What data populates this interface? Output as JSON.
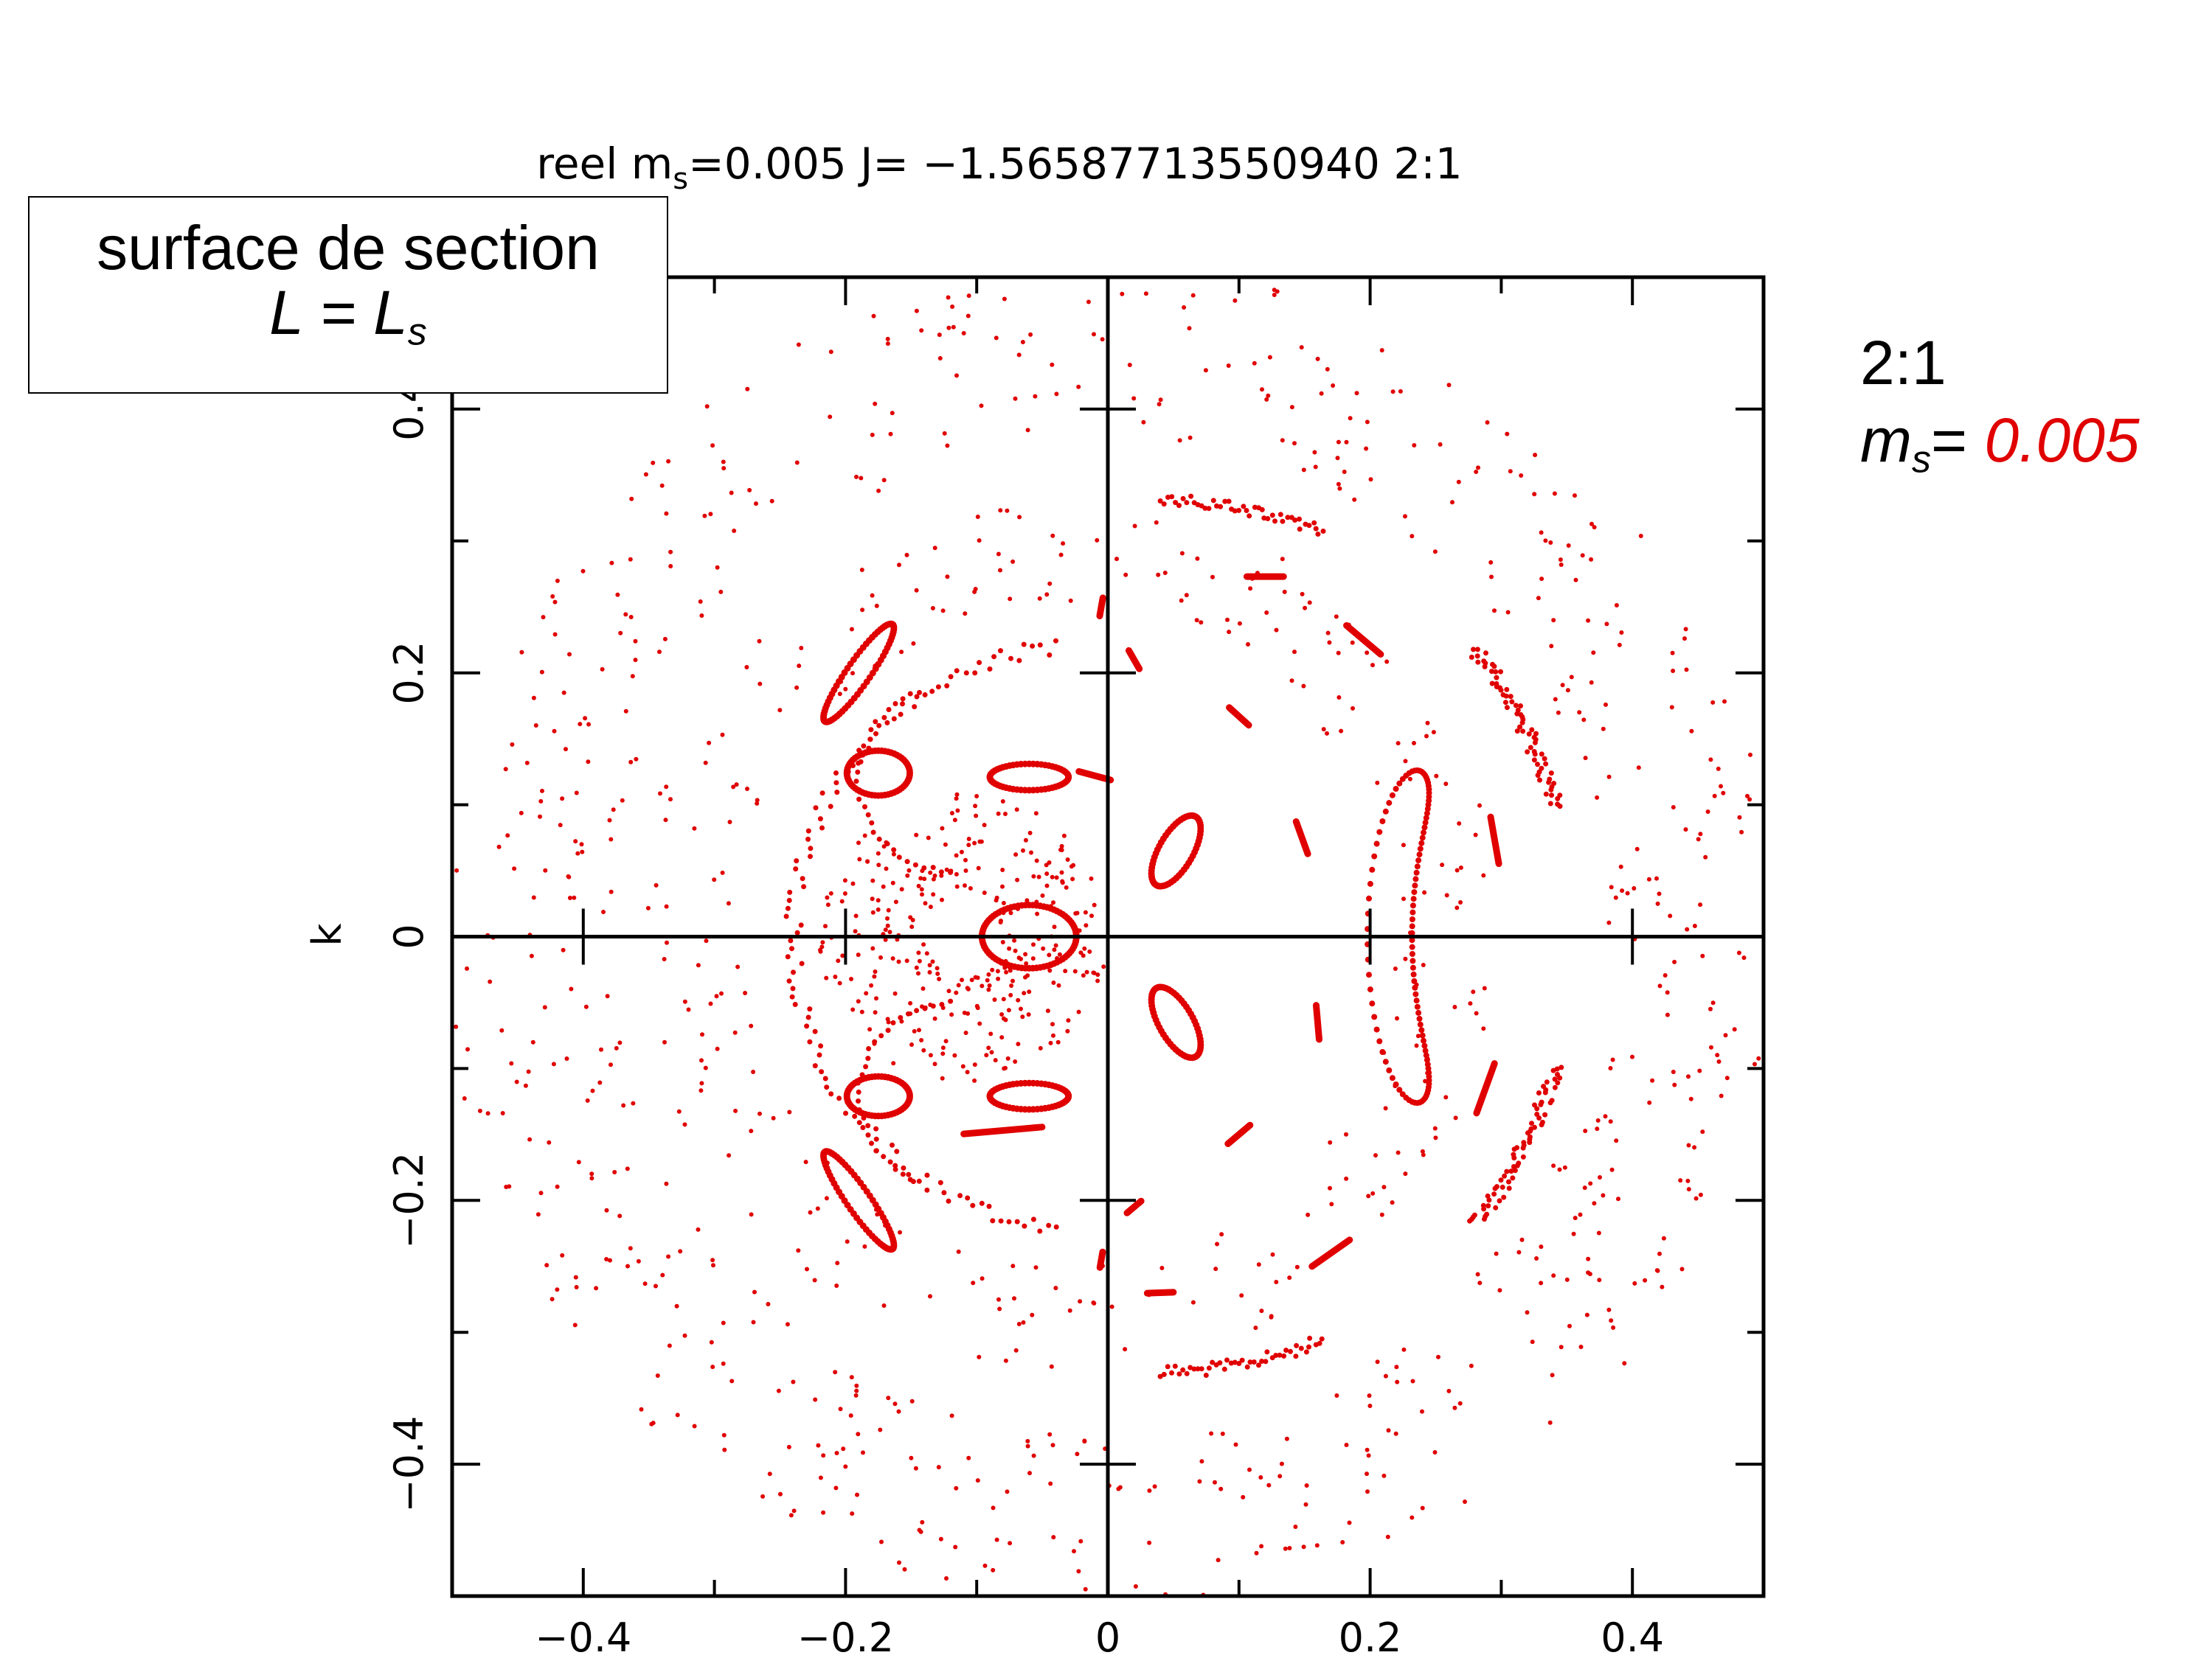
{
  "chart_data": {
    "type": "scatter",
    "title": "reel m_s=0.005 J= −1.56587713550940 2:1",
    "title_parts": {
      "pre": "reel m",
      "sub": "s",
      "post": "=0.005 J= −1.56587713550940 2:1"
    },
    "xlabel": "",
    "ylabel": "k",
    "xlim": [
      -0.5,
      0.5
    ],
    "ylim": [
      -0.5,
      0.5
    ],
    "xticks": [
      -0.4,
      -0.2,
      0,
      0.2,
      0.4
    ],
    "xtick_labels": [
      "−0.4",
      "−0.2",
      "0",
      "0.2",
      "0.4"
    ],
    "yticks": [
      -0.4,
      -0.2,
      0,
      0.2,
      0.4
    ],
    "ytick_labels": [
      "−0.4",
      "−0.2",
      "0",
      "0.2",
      "0.4"
    ],
    "grid": false,
    "marker_color": "#e00000",
    "series": [
      {
        "label": "center-ellipse",
        "kind": "ellipse",
        "cx": -0.06,
        "cy": 0.0,
        "rx": 0.036,
        "ry": 0.024,
        "angle": 0,
        "density": 80
      },
      {
        "label": "upper-left-small-loop",
        "kind": "ellipse",
        "cx": -0.175,
        "cy": 0.124,
        "rx": 0.024,
        "ry": 0.017,
        "angle": 0,
        "density": 60
      },
      {
        "label": "upper-mid-small-loop",
        "kind": "ellipse",
        "cx": -0.06,
        "cy": 0.121,
        "rx": 0.03,
        "ry": 0.01,
        "angle": 0,
        "density": 60
      },
      {
        "label": "lower-left-small-loop",
        "kind": "ellipse",
        "cx": -0.175,
        "cy": -0.121,
        "rx": 0.024,
        "ry": 0.015,
        "angle": 0,
        "density": 60
      },
      {
        "label": "lower-mid-small-loop",
        "kind": "ellipse",
        "cx": -0.06,
        "cy": -0.121,
        "rx": 0.03,
        "ry": 0.01,
        "angle": 0,
        "density": 60
      },
      {
        "label": "upper-left-tilted-loop",
        "kind": "ellipse",
        "cx": -0.19,
        "cy": 0.2,
        "rx": 0.045,
        "ry": 0.009,
        "angle": 55,
        "density": 70
      },
      {
        "label": "lower-left-tilted-loop",
        "kind": "ellipse",
        "cx": -0.19,
        "cy": -0.2,
        "rx": 0.045,
        "ry": 0.009,
        "angle": -55,
        "density": 70
      },
      {
        "label": "upper-right-small-loop",
        "kind": "ellipse",
        "cx": 0.052,
        "cy": 0.065,
        "rx": 0.03,
        "ry": 0.013,
        "angle": 60,
        "density": 60
      },
      {
        "label": "lower-right-small-loop",
        "kind": "ellipse",
        "cx": 0.052,
        "cy": -0.065,
        "rx": 0.03,
        "ry": 0.013,
        "angle": -60,
        "density": 60
      },
      {
        "label": "right-banana",
        "kind": "banana",
        "cx": 0.26,
        "cy": 0.0,
        "r": 0.045,
        "a0": 110,
        "a1": 250,
        "stretch": 2.7,
        "thick": 0.017,
        "density": 110
      },
      {
        "label": "upper-arc-cluster",
        "kind": "arc",
        "cx": 0.04,
        "cy": 0.0,
        "r": 0.33,
        "a0": 68,
        "a1": 90,
        "jitter": 0.005,
        "n": 45
      },
      {
        "label": "lower-arc-cluster",
        "kind": "arc",
        "cx": 0.04,
        "cy": 0.0,
        "r": 0.33,
        "a0": -90,
        "a1": -68,
        "jitter": 0.005,
        "n": 45
      },
      {
        "label": "upper-right-crescent",
        "kind": "arc",
        "cx": 0.0,
        "cy": 0.0,
        "r": 0.355,
        "a0": 16,
        "a1": 38,
        "jitter": 0.006,
        "n": 70
      },
      {
        "label": "lower-right-crescent",
        "kind": "arc",
        "cx": 0.0,
        "cy": 0.0,
        "r": 0.355,
        "a0": -38,
        "a1": -16,
        "jitter": 0.006,
        "n": 70
      },
      {
        "label": "left-s-curve-upper",
        "kind": "arc",
        "cx": -0.12,
        "cy": 0.12,
        "r": 0.07,
        "a0": 110,
        "a1": 270,
        "jitter": 0.002,
        "n": 30
      },
      {
        "label": "left-s-curve-lower",
        "kind": "arc",
        "cx": -0.12,
        "cy": -0.12,
        "r": 0.07,
        "a0": 90,
        "a1": 250,
        "jitter": 0.002,
        "n": 30
      },
      {
        "label": "outer-chaotic-ring",
        "kind": "ring",
        "cx": 0.0,
        "cy": 0.0,
        "r0": 0.38,
        "r1": 0.51,
        "n": 600
      },
      {
        "label": "middle-chaotic-ring",
        "kind": "ring",
        "cx": -0.03,
        "cy": 0.0,
        "r0": 0.25,
        "r1": 0.33,
        "n": 260
      },
      {
        "label": "inner-chaotic-zone",
        "kind": "ring",
        "cx": -0.11,
        "cy": 0.0,
        "r0": 0.03,
        "r1": 0.11,
        "n": 320
      },
      {
        "label": "inner-invariant-curve",
        "kind": "arc",
        "cx": -0.02,
        "cy": 0.0,
        "r": 0.22,
        "a0": 95,
        "a1": 265,
        "jitter": 0.006,
        "n": 110
      }
    ],
    "segments": [
      {
        "x": -0.01,
        "y": 0.122,
        "len": 0.025,
        "angle": -15
      },
      {
        "x": 0.02,
        "y": 0.21,
        "len": 0.016,
        "angle": -60
      },
      {
        "x": -0.005,
        "y": 0.25,
        "len": 0.014,
        "angle": 80
      },
      {
        "x": 0.12,
        "y": 0.273,
        "len": 0.028,
        "angle": 0
      },
      {
        "x": 0.195,
        "y": 0.225,
        "len": 0.034,
        "angle": -40
      },
      {
        "x": 0.1,
        "y": 0.167,
        "len": 0.02,
        "angle": -42
      },
      {
        "x": 0.148,
        "y": 0.075,
        "len": 0.026,
        "angle": -70
      },
      {
        "x": 0.295,
        "y": 0.073,
        "len": 0.036,
        "angle": -80
      },
      {
        "x": 0.16,
        "y": -0.065,
        "len": 0.026,
        "angle": 95
      },
      {
        "x": 0.288,
        "y": -0.115,
        "len": 0.04,
        "angle": 70
      },
      {
        "x": 0.1,
        "y": -0.15,
        "len": 0.022,
        "angle": 40
      },
      {
        "x": 0.17,
        "y": -0.24,
        "len": 0.035,
        "angle": 35
      },
      {
        "x": 0.02,
        "y": -0.205,
        "len": 0.014,
        "angle": 40
      },
      {
        "x": 0.04,
        "y": -0.27,
        "len": 0.02,
        "angle": 2
      },
      {
        "x": -0.005,
        "y": -0.245,
        "len": 0.012,
        "angle": 80
      },
      {
        "x": -0.08,
        "y": -0.147,
        "len": 0.06,
        "angle": 5
      }
    ]
  },
  "section_box": {
    "line1": "surface de section",
    "line2_pre": "L = L",
    "line2_sub": "s"
  },
  "side_note": {
    "ratio": "2:1",
    "ms_sym": "m",
    "ms_sub": "s",
    "ms_eq": "= ",
    "ms_val": "0.005"
  }
}
